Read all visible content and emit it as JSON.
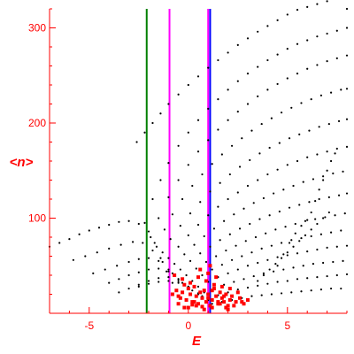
{
  "chart_data": {
    "type": "scatter",
    "title": "",
    "xlabel": "E",
    "ylabel": "<n>",
    "xlim": [
      -7,
      8
    ],
    "ylim": [
      0,
      320
    ],
    "x_ticks": [
      -5,
      0,
      5
    ],
    "y_ticks": [
      100,
      200,
      300
    ],
    "grid": false,
    "legend": "none",
    "colors": {
      "axes": "#ff0000",
      "points": "#000000",
      "highlight_points": "#ff0000",
      "vline_green": "#007f00",
      "vline_magenta": "#ff00ff",
      "vline_blue": "#0000ff"
    },
    "vertical_lines": [
      {
        "x": -2.1,
        "color": "#007f00"
      },
      {
        "x": -0.95,
        "color": "#ff00ff"
      },
      {
        "x": 1.0,
        "color": "#ff00ff"
      },
      {
        "x": 1.1,
        "color": "#0000ff"
      }
    ],
    "series": [
      {
        "x": [
          -7.0,
          -6.5,
          -6.0,
          -5.5,
          -5.0,
          -4.5,
          -4.0,
          -3.5,
          -3.0,
          -2.5,
          -2.0,
          -1.7,
          -1.4,
          -1.1,
          -0.8
        ],
        "y": [
          70,
          74,
          78,
          83,
          87,
          90,
          93,
          96,
          97,
          94,
          86,
          74,
          58,
          44,
          32
        ]
      },
      {
        "x": [
          -5.8,
          -5.2,
          -4.6,
          -4.0,
          -3.4,
          -2.8,
          -2.3,
          -1.8,
          -1.3,
          -0.8,
          -0.3,
          0.2,
          0.7
        ],
        "y": [
          56,
          60,
          64,
          68,
          72,
          75,
          74,
          66,
          54,
          42,
          32,
          24,
          18
        ]
      },
      {
        "x": [
          -4.8,
          -4.2,
          -3.6,
          -3.0,
          -2.5,
          -2.0,
          -1.5,
          -1.0,
          -0.5,
          0.0,
          0.5,
          1.0
        ],
        "y": [
          42,
          46,
          50,
          54,
          57,
          58,
          55,
          46,
          36,
          28,
          21,
          16
        ]
      },
      {
        "x": [
          -4.0,
          -3.5,
          -3.0,
          -2.5,
          -2.0,
          -1.5,
          -1.0,
          -0.5,
          0.0,
          0.5,
          1.0
        ],
        "y": [
          32,
          36,
          40,
          43,
          46,
          47,
          44,
          36,
          28,
          21,
          15
        ]
      },
      {
        "x": [
          -3.5,
          -3.0,
          -2.5,
          -2.0,
          -1.5,
          -1.0,
          -0.5,
          0.0,
          0.5,
          1.0
        ],
        "y": [
          22,
          26,
          30,
          34,
          37,
          38,
          34,
          27,
          20,
          14
        ]
      },
      {
        "x": [
          -2.5,
          -2.0,
          -1.5,
          -1.0,
          -0.5,
          0.0,
          0.5,
          1.0,
          1.5
        ],
        "y": [
          28,
          31,
          33,
          34,
          32,
          27,
          21,
          15,
          11
        ]
      },
      {
        "x": [
          -2.6,
          -2.2,
          -1.8,
          -1.4,
          -1.0,
          -0.5,
          0.0,
          0.5,
          1.0,
          1.5,
          2.0,
          2.5,
          3.0,
          3.5,
          4.0,
          4.5,
          5.0,
          5.5,
          6.0,
          6.5,
          7.0,
          7.5,
          8.0
        ],
        "y": [
          180,
          190,
          200,
          210,
          220,
          230,
          240,
          249,
          258,
          266,
          274,
          282,
          289,
          296,
          302,
          308,
          314,
          319,
          322,
          325,
          328,
          331,
          320
        ]
      },
      {
        "x": [
          -2.2,
          -1.8,
          -1.4,
          -1.0,
          -0.5,
          0.0,
          0.5,
          1.0,
          1.5,
          2.0,
          2.5,
          3.0,
          3.5,
          4.0,
          4.5,
          5.0,
          5.5,
          6.0,
          6.5,
          7.0,
          7.5,
          8.0
        ],
        "y": [
          95,
          120,
          140,
          158,
          176,
          190,
          203,
          215,
          225,
          235,
          244,
          252,
          259,
          266,
          272,
          278,
          283,
          287,
          291,
          294,
          297,
          300
        ]
      },
      {
        "x": [
          -1.9,
          -1.5,
          -1.0,
          -0.5,
          0.0,
          0.5,
          1.0,
          1.5,
          2.0,
          2.5,
          3.0,
          3.5,
          4.0,
          4.5,
          5.0,
          5.5,
          6.0,
          6.5,
          7.0,
          7.5,
          8.0
        ],
        "y": [
          80,
          100,
          122,
          140,
          156,
          170,
          182,
          193,
          203,
          212,
          220,
          228,
          235,
          241,
          247,
          252,
          257,
          261,
          265,
          268,
          271
        ]
      },
      {
        "x": [
          -1.6,
          -1.2,
          -0.8,
          -0.3,
          0.2,
          0.7,
          1.2,
          1.7,
          2.2,
          2.7,
          3.2,
          3.7,
          4.2,
          4.7,
          5.2,
          5.7,
          6.2,
          6.7,
          7.2,
          7.7,
          8.0
        ],
        "y": [
          70,
          88,
          104,
          120,
          134,
          146,
          157,
          167,
          176,
          184,
          192,
          199,
          205,
          211,
          216,
          221,
          225,
          229,
          232,
          235,
          236
        ]
      },
      {
        "x": [
          -1.3,
          -0.9,
          -0.4,
          0.1,
          0.6,
          1.1,
          1.6,
          2.1,
          2.6,
          3.1,
          3.6,
          4.1,
          4.6,
          5.1,
          5.6,
          6.1,
          6.6,
          7.1,
          7.6,
          8.0
        ],
        "y": [
          64,
          78,
          92,
          105,
          117,
          128,
          137,
          146,
          154,
          161,
          168,
          174,
          179,
          184,
          188,
          192,
          196,
          199,
          202,
          204
        ]
      },
      {
        "x": [
          -1.0,
          -0.5,
          0.0,
          0.5,
          1.0,
          1.5,
          2.0,
          2.5,
          3.0,
          3.5,
          4.0,
          4.5,
          5.0,
          5.5,
          6.0,
          6.5,
          7.0,
          7.5,
          8.0
        ],
        "y": [
          58,
          70,
          82,
          93,
          103,
          112,
          120,
          127,
          134,
          140,
          146,
          151,
          156,
          160,
          164,
          167,
          170,
          173,
          175
        ]
      },
      {
        "x": [
          -0.7,
          -0.2,
          0.3,
          0.8,
          1.3,
          1.8,
          2.3,
          2.8,
          3.3,
          3.8,
          4.3,
          4.8,
          5.3,
          5.8,
          6.3,
          6.8,
          7.3,
          7.8
        ],
        "y": [
          52,
          62,
          72,
          81,
          89,
          97,
          104,
          110,
          116,
          121,
          126,
          130,
          134,
          138,
          141,
          144,
          147,
          149
        ]
      },
      {
        "x": [
          -0.4,
          0.1,
          0.6,
          1.1,
          1.6,
          2.1,
          2.6,
          3.1,
          3.6,
          4.1,
          4.6,
          5.1,
          5.6,
          6.1,
          6.6,
          7.1,
          7.6,
          8.0
        ],
        "y": [
          46,
          55,
          63,
          70,
          77,
          83,
          89,
          94,
          99,
          103,
          107,
          111,
          114,
          117,
          120,
          122,
          124,
          126
        ]
      },
      {
        "x": [
          -0.1,
          0.4,
          0.9,
          1.4,
          1.9,
          2.4,
          2.9,
          3.4,
          3.9,
          4.4,
          4.9,
          5.4,
          5.9,
          6.4,
          6.9,
          7.4,
          7.9
        ],
        "y": [
          40,
          47,
          54,
          60,
          66,
          71,
          76,
          80,
          84,
          88,
          91,
          94,
          97,
          99,
          101,
          103,
          105
        ]
      },
      {
        "x": [
          0.2,
          0.7,
          1.2,
          1.7,
          2.2,
          2.7,
          3.2,
          3.7,
          4.2,
          4.7,
          5.2,
          5.7,
          6.2,
          6.7,
          7.2,
          7.7
        ],
        "y": [
          34,
          40,
          46,
          51,
          56,
          60,
          64,
          68,
          71,
          74,
          77,
          79,
          81,
          83,
          85,
          87
        ]
      },
      {
        "x": [
          0.5,
          1.0,
          1.5,
          2.0,
          2.5,
          3.0,
          3.5,
          4.0,
          4.5,
          5.0,
          5.5,
          6.0,
          6.5,
          7.0,
          7.5,
          8.0
        ],
        "y": [
          28,
          33,
          38,
          42,
          46,
          50,
          53,
          56,
          59,
          61,
          63,
          65,
          67,
          69,
          70,
          71
        ]
      },
      {
        "x": [
          0.8,
          1.3,
          1.8,
          2.3,
          2.8,
          3.3,
          3.8,
          4.3,
          4.8,
          5.3,
          5.8,
          6.3,
          6.8,
          7.3,
          7.8
        ],
        "y": [
          22,
          26,
          30,
          33,
          36,
          39,
          42,
          44,
          46,
          48,
          50,
          52,
          53,
          54,
          55
        ]
      },
      {
        "x": [
          1.0,
          1.5,
          2.0,
          2.5,
          3.0,
          3.5,
          4.0,
          4.5,
          5.0,
          5.5,
          6.0,
          6.5,
          7.0,
          7.5,
          8.0
        ],
        "y": [
          16,
          19,
          22,
          25,
          27,
          29,
          31,
          33,
          34,
          36,
          37,
          38,
          39,
          40,
          41
        ]
      },
      {
        "x": [
          1.2,
          1.7,
          2.2,
          2.7,
          3.2,
          3.7,
          4.2,
          4.7,
          5.2,
          5.7,
          6.2,
          6.7,
          7.2,
          7.7
        ],
        "y": [
          10,
          12,
          14,
          16,
          18,
          19,
          20,
          21,
          22,
          23,
          24,
          25,
          26,
          26
        ]
      },
      {
        "x": [
          4.5,
          4.8,
          5.1,
          5.4,
          5.7,
          6.0,
          6.2,
          6.4,
          6.6,
          6.8,
          7.0,
          7.2,
          7.4
        ],
        "y": [
          50,
          62,
          74,
          84,
          92,
          98,
          106,
          118,
          130,
          140,
          150,
          160,
          168
        ]
      },
      {
        "x": [
          3.5,
          3.8,
          4.1,
          4.4,
          4.7,
          5.0,
          5.3,
          5.6,
          5.9,
          6.2,
          6.5,
          6.8,
          7.1
        ],
        "y": [
          34,
          40,
          46,
          52,
          58,
          64,
          70,
          76,
          82,
          88,
          94,
          100,
          106
        ]
      }
    ],
    "highlight_series": {
      "x": [
        -0.8,
        -0.6,
        -0.5,
        -0.4,
        -0.3,
        -0.2,
        -0.1,
        0.0,
        0.1,
        0.2,
        0.3,
        0.4,
        0.5,
        0.6,
        0.7,
        0.8,
        0.9,
        1.0,
        1.1,
        1.2,
        1.3,
        1.4,
        1.5,
        1.6,
        1.7,
        1.8,
        1.9,
        2.0,
        2.1,
        2.2,
        2.4,
        2.6,
        2.8,
        3.0,
        -0.7,
        -0.3,
        0.1,
        0.5,
        0.9,
        1.3,
        1.7,
        2.1,
        2.5,
        0.0,
        0.4,
        0.8,
        1.2,
        1.6,
        2.0,
        -0.5,
        0.3,
        1.0,
        1.8,
        2.3,
        0.6,
        1.4,
        1.1,
        1.5,
        -0.2,
        0.2,
        0.7,
        1.9,
        2.7,
        1.0,
        1.2
      ],
      "y": [
        20,
        24,
        18,
        16,
        22,
        30,
        14,
        26,
        20,
        12,
        28,
        18,
        10,
        22,
        16,
        24,
        12,
        20,
        8,
        14,
        26,
        18,
        10,
        22,
        16,
        12,
        20,
        8,
        14,
        18,
        12,
        16,
        10,
        14,
        40,
        36,
        32,
        38,
        34,
        30,
        28,
        26,
        22,
        6,
        8,
        4,
        6,
        10,
        4,
        10,
        12,
        42,
        18,
        8,
        46,
        38,
        50,
        12,
        6,
        9,
        7,
        6,
        12,
        16,
        24
      ]
    }
  }
}
